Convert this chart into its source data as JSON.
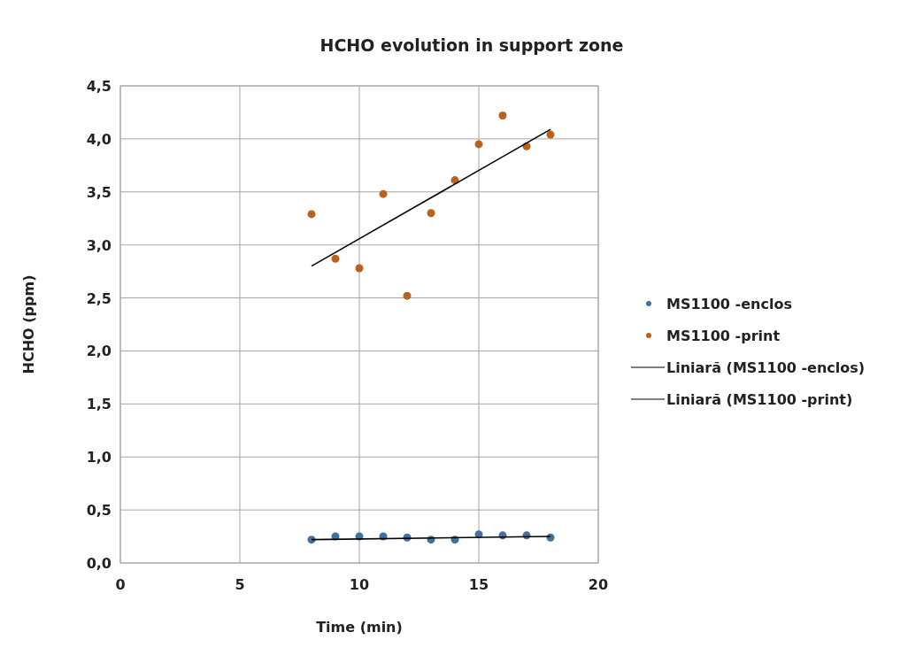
{
  "chart_data": {
    "type": "scatter",
    "title": "HCHO evolution in support zone",
    "xlabel": "Time (min)",
    "ylabel": "HCHO (ppm)",
    "xlim": [
      0,
      20
    ],
    "xticks": [
      0,
      5,
      10,
      15,
      20
    ],
    "ylim": [
      0,
      4.5
    ],
    "yticks": [
      {
        "value": 0,
        "label": "0,0"
      },
      {
        "value": 0.5,
        "label": "0,5"
      },
      {
        "value": 1,
        "label": "1,0"
      },
      {
        "value": 1.5,
        "label": "1,5"
      },
      {
        "value": 2,
        "label": "2,0"
      },
      {
        "value": 2.5,
        "label": "2,5"
      },
      {
        "value": 3,
        "label": "3,0"
      },
      {
        "value": 3.5,
        "label": "3,5"
      },
      {
        "value": 4,
        "label": "4,0"
      },
      {
        "value": 4.5,
        "label": "4,5"
      }
    ],
    "grid": true,
    "legend": "right",
    "marker": "circle",
    "series": [
      {
        "name": "MS1100 -enclos",
        "color": "#41719c",
        "x": [
          8,
          9,
          10,
          11,
          12,
          13,
          14,
          15,
          16,
          17,
          18
        ],
        "values": [
          0.22,
          0.25,
          0.25,
          0.25,
          0.24,
          0.22,
          0.22,
          0.27,
          0.26,
          0.26,
          0.24
        ]
      },
      {
        "name": "MS1100 -print",
        "color": "#b8621b",
        "x": [
          8,
          9,
          10,
          11,
          12,
          13,
          14,
          15,
          16,
          17,
          18
        ],
        "values": [
          3.29,
          2.87,
          2.78,
          3.48,
          2.52,
          3.3,
          3.61,
          3.95,
          4.22,
          3.93,
          4.04
        ]
      },
      {
        "name": "Liniară (MS1100 -enclos)",
        "type": "line",
        "marker": "none",
        "color": "#000000",
        "x": [
          8,
          18
        ],
        "values": [
          0.22,
          0.25
        ]
      },
      {
        "name": "Liniară (MS1100 -print)",
        "type": "line",
        "marker": "none",
        "color": "#000000",
        "x": [
          8,
          18
        ],
        "values": [
          2.8,
          4.09
        ]
      }
    ]
  }
}
